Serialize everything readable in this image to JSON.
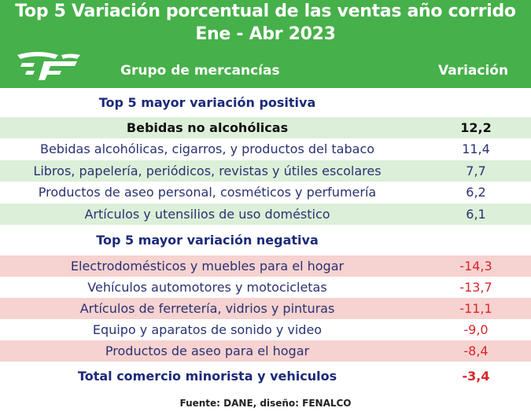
{
  "title": {
    "line1": "Top 5 Variación porcentual de las ventas año corrido",
    "line2": "Ene - Abr 2023"
  },
  "columns": {
    "group": "Grupo de mercancías",
    "variation": "Variación"
  },
  "positive": {
    "heading": "Top 5 mayor variación positiva",
    "rows": [
      {
        "label": "Bebidas no alcohólicas",
        "value": "12,2"
      },
      {
        "label": "Bebidas alcohólicas, cigarros, y productos del tabaco",
        "value": "11,4"
      },
      {
        "label": "Libros, papelería, periódicos, revistas y útiles escolares",
        "value": "7,7"
      },
      {
        "label": "Productos de aseo personal, cosméticos y perfumería",
        "value": "6,2"
      },
      {
        "label": "Artículos y utensilios de uso doméstico",
        "value": "6,1"
      }
    ]
  },
  "negative": {
    "heading": "Top 5 mayor variación negativa",
    "rows": [
      {
        "label": "Electrodomésticos y muebles para el hogar",
        "value": "-14,3"
      },
      {
        "label": "Vehículos automotores y motocicletas",
        "value": "-13,7"
      },
      {
        "label": "Artículos de ferretería, vidrios y pinturas",
        "value": "-11,1"
      },
      {
        "label": "Equipo y aparatos de sonido y video",
        "value": "-9,0"
      },
      {
        "label": "Productos de aseo para el hogar",
        "value": "-8,4"
      }
    ]
  },
  "total": {
    "label": "Total comercio minorista y vehiculos",
    "value": "-3,4"
  },
  "source": "Fuente: DANE, diseño: FENALCO",
  "colors": {
    "header_green": "#46b04a",
    "row_green": "#dcefd8",
    "row_red": "#f6d2d0",
    "text_navy": "#2a3272",
    "negative_red": "#d9262a"
  },
  "icons": {
    "logo": "fenalco-logo-icon"
  }
}
